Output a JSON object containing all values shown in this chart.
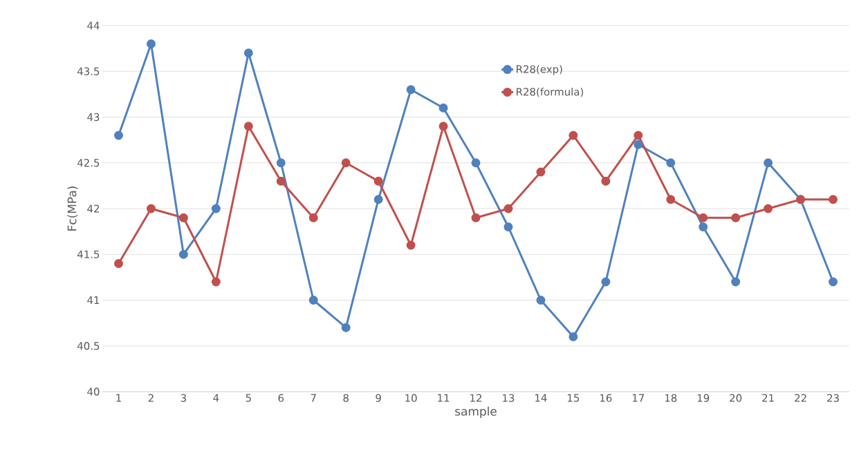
{
  "chart_data": {
    "type": "line",
    "xlabel": "sample",
    "ylabel": "Fc(MPa)",
    "categories": [
      "1",
      "2",
      "3",
      "4",
      "5",
      "6",
      "7",
      "8",
      "9",
      "10",
      "11",
      "12",
      "13",
      "14",
      "15",
      "16",
      "17",
      "18",
      "19",
      "20",
      "21",
      "22",
      "23"
    ],
    "series": [
      {
        "name": "R28(exp)",
        "color": "#4f81bd",
        "values": [
          42.8,
          43.8,
          41.5,
          42.0,
          43.7,
          42.5,
          41.0,
          40.7,
          42.1,
          43.3,
          43.1,
          42.5,
          41.8,
          41.0,
          40.6,
          41.2,
          42.7,
          42.5,
          41.8,
          41.2,
          42.5,
          42.1,
          41.2
        ]
      },
      {
        "name": "R28(formula)",
        "color": "#c0504d",
        "values": [
          41.4,
          42.0,
          41.9,
          41.2,
          42.9,
          42.3,
          41.9,
          42.5,
          42.3,
          41.6,
          42.9,
          41.9,
          42.0,
          42.4,
          42.8,
          42.3,
          42.8,
          42.1,
          41.9,
          41.9,
          42.0,
          42.1,
          42.1
        ]
      }
    ],
    "ylim": [
      40,
      44
    ],
    "yticks": [
      40,
      40.5,
      41,
      41.5,
      42,
      42.5,
      43,
      43.5,
      44
    ],
    "grid": "y",
    "legend": "top",
    "marker": "circle",
    "line_style": "solid"
  }
}
